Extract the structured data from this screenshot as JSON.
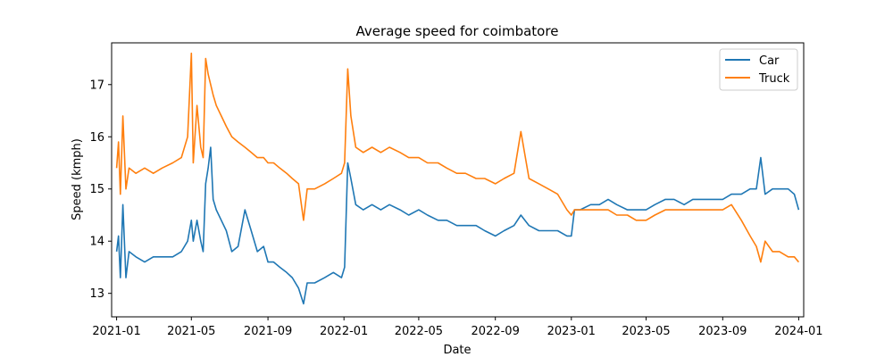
{
  "chart_data": {
    "type": "line",
    "title": "Average speed for coimbatore",
    "xlabel": "Date",
    "ylabel": "Speed (kmph)",
    "x_range": [
      "2020-12-24",
      "2024-01-09"
    ],
    "ylim": [
      12.55,
      17.8
    ],
    "x_ticks": [
      {
        "label": "2021-01",
        "date": "2021-01-01"
      },
      {
        "label": "2021-05",
        "date": "2021-05-01"
      },
      {
        "label": "2021-09",
        "date": "2021-09-01"
      },
      {
        "label": "2022-01",
        "date": "2022-01-01"
      },
      {
        "label": "2022-05",
        "date": "2022-05-01"
      },
      {
        "label": "2022-09",
        "date": "2022-09-01"
      },
      {
        "label": "2023-01",
        "date": "2023-01-01"
      },
      {
        "label": "2023-05",
        "date": "2023-05-01"
      },
      {
        "label": "2023-09",
        "date": "2023-09-01"
      },
      {
        "label": "2024-01",
        "date": "2024-01-01"
      }
    ],
    "y_ticks": [
      13,
      14,
      15,
      16,
      17
    ],
    "grid": false,
    "legend": "upper right",
    "series": [
      {
        "name": "Car",
        "color": "#1f77b4",
        "points": [
          [
            "2021-01-01",
            13.8
          ],
          [
            "2021-01-04",
            14.1
          ],
          [
            "2021-01-07",
            13.3
          ],
          [
            "2021-01-11",
            14.7
          ],
          [
            "2021-01-16",
            13.3
          ],
          [
            "2021-01-21",
            13.8
          ],
          [
            "2021-02-01",
            13.7
          ],
          [
            "2021-02-15",
            13.6
          ],
          [
            "2021-03-01",
            13.7
          ],
          [
            "2021-03-15",
            13.7
          ],
          [
            "2021-04-01",
            13.7
          ],
          [
            "2021-04-15",
            13.8
          ],
          [
            "2021-04-25",
            14.0
          ],
          [
            "2021-05-01",
            14.4
          ],
          [
            "2021-05-04",
            14.0
          ],
          [
            "2021-05-10",
            14.4
          ],
          [
            "2021-05-16",
            14.0
          ],
          [
            "2021-05-20",
            13.8
          ],
          [
            "2021-05-24",
            15.1
          ],
          [
            "2021-05-28",
            15.4
          ],
          [
            "2021-06-01",
            15.8
          ],
          [
            "2021-06-05",
            14.8
          ],
          [
            "2021-06-10",
            14.6
          ],
          [
            "2021-06-18",
            14.4
          ],
          [
            "2021-06-26",
            14.2
          ],
          [
            "2021-07-05",
            13.8
          ],
          [
            "2021-07-15",
            13.9
          ],
          [
            "2021-07-26",
            14.6
          ],
          [
            "2021-08-05",
            14.2
          ],
          [
            "2021-08-15",
            13.8
          ],
          [
            "2021-08-25",
            13.9
          ],
          [
            "2021-09-01",
            13.6
          ],
          [
            "2021-09-10",
            13.6
          ],
          [
            "2021-09-20",
            13.5
          ],
          [
            "2021-10-01",
            13.4
          ],
          [
            "2021-10-10",
            13.3
          ],
          [
            "2021-10-20",
            13.1
          ],
          [
            "2021-10-28",
            12.8
          ],
          [
            "2021-11-03",
            13.2
          ],
          [
            "2021-11-15",
            13.2
          ],
          [
            "2021-12-01",
            13.3
          ],
          [
            "2021-12-15",
            13.4
          ],
          [
            "2021-12-28",
            13.3
          ],
          [
            "2022-01-02",
            13.5
          ],
          [
            "2022-01-07",
            15.5
          ],
          [
            "2022-01-12",
            15.2
          ],
          [
            "2022-01-20",
            14.7
          ],
          [
            "2022-02-01",
            14.6
          ],
          [
            "2022-02-15",
            14.7
          ],
          [
            "2022-03-01",
            14.6
          ],
          [
            "2022-03-15",
            14.7
          ],
          [
            "2022-04-01",
            14.6
          ],
          [
            "2022-04-15",
            14.5
          ],
          [
            "2022-05-01",
            14.6
          ],
          [
            "2022-05-15",
            14.5
          ],
          [
            "2022-06-01",
            14.4
          ],
          [
            "2022-06-15",
            14.4
          ],
          [
            "2022-07-01",
            14.3
          ],
          [
            "2022-07-15",
            14.3
          ],
          [
            "2022-08-01",
            14.3
          ],
          [
            "2022-08-15",
            14.2
          ],
          [
            "2022-09-01",
            14.1
          ],
          [
            "2022-09-15",
            14.2
          ],
          [
            "2022-10-01",
            14.3
          ],
          [
            "2022-10-12",
            14.5
          ],
          [
            "2022-10-25",
            14.3
          ],
          [
            "2022-11-10",
            14.2
          ],
          [
            "2022-11-25",
            14.2
          ],
          [
            "2022-12-10",
            14.2
          ],
          [
            "2022-12-25",
            14.1
          ],
          [
            "2023-01-01",
            14.1
          ],
          [
            "2023-01-06",
            14.6
          ],
          [
            "2023-01-15",
            14.6
          ],
          [
            "2023-02-01",
            14.7
          ],
          [
            "2023-02-15",
            14.7
          ],
          [
            "2023-03-01",
            14.8
          ],
          [
            "2023-03-15",
            14.7
          ],
          [
            "2023-04-01",
            14.6
          ],
          [
            "2023-04-15",
            14.6
          ],
          [
            "2023-05-01",
            14.6
          ],
          [
            "2023-05-15",
            14.7
          ],
          [
            "2023-06-01",
            14.8
          ],
          [
            "2023-06-15",
            14.8
          ],
          [
            "2023-07-01",
            14.7
          ],
          [
            "2023-07-15",
            14.8
          ],
          [
            "2023-08-01",
            14.8
          ],
          [
            "2023-08-15",
            14.8
          ],
          [
            "2023-09-01",
            14.8
          ],
          [
            "2023-09-15",
            14.9
          ],
          [
            "2023-10-01",
            14.9
          ],
          [
            "2023-10-15",
            15.0
          ],
          [
            "2023-10-25",
            15.0
          ],
          [
            "2023-11-01",
            15.6
          ],
          [
            "2023-11-08",
            14.9
          ],
          [
            "2023-11-20",
            15.0
          ],
          [
            "2023-12-01",
            15.0
          ],
          [
            "2023-12-15",
            15.0
          ],
          [
            "2023-12-25",
            14.9
          ],
          [
            "2024-01-01",
            14.6
          ]
        ]
      },
      {
        "name": "Truck",
        "color": "#ff7f0e",
        "points": [
          [
            "2021-01-01",
            15.4
          ],
          [
            "2021-01-04",
            15.9
          ],
          [
            "2021-01-07",
            14.9
          ],
          [
            "2021-01-11",
            16.4
          ],
          [
            "2021-01-16",
            15.0
          ],
          [
            "2021-01-21",
            15.4
          ],
          [
            "2021-02-01",
            15.3
          ],
          [
            "2021-02-15",
            15.4
          ],
          [
            "2021-03-01",
            15.3
          ],
          [
            "2021-03-15",
            15.4
          ],
          [
            "2021-04-01",
            15.5
          ],
          [
            "2021-04-15",
            15.6
          ],
          [
            "2021-04-25",
            16.0
          ],
          [
            "2021-05-01",
            17.6
          ],
          [
            "2021-05-04",
            15.5
          ],
          [
            "2021-05-10",
            16.6
          ],
          [
            "2021-05-16",
            15.8
          ],
          [
            "2021-05-20",
            15.6
          ],
          [
            "2021-05-24",
            17.5
          ],
          [
            "2021-05-28",
            17.2
          ],
          [
            "2021-06-01",
            17.0
          ],
          [
            "2021-06-05",
            16.8
          ],
          [
            "2021-06-10",
            16.6
          ],
          [
            "2021-06-18",
            16.4
          ],
          [
            "2021-06-26",
            16.2
          ],
          [
            "2021-07-05",
            16.0
          ],
          [
            "2021-07-15",
            15.9
          ],
          [
            "2021-07-26",
            15.8
          ],
          [
            "2021-08-05",
            15.7
          ],
          [
            "2021-08-15",
            15.6
          ],
          [
            "2021-08-25",
            15.6
          ],
          [
            "2021-09-01",
            15.5
          ],
          [
            "2021-09-10",
            15.5
          ],
          [
            "2021-09-20",
            15.4
          ],
          [
            "2021-10-01",
            15.3
          ],
          [
            "2021-10-10",
            15.2
          ],
          [
            "2021-10-20",
            15.1
          ],
          [
            "2021-10-28",
            14.4
          ],
          [
            "2021-11-03",
            15.0
          ],
          [
            "2021-11-15",
            15.0
          ],
          [
            "2021-12-01",
            15.1
          ],
          [
            "2021-12-15",
            15.2
          ],
          [
            "2021-12-28",
            15.3
          ],
          [
            "2022-01-02",
            15.5
          ],
          [
            "2022-01-07",
            17.3
          ],
          [
            "2022-01-12",
            16.4
          ],
          [
            "2022-01-20",
            15.8
          ],
          [
            "2022-02-01",
            15.7
          ],
          [
            "2022-02-15",
            15.8
          ],
          [
            "2022-03-01",
            15.7
          ],
          [
            "2022-03-15",
            15.8
          ],
          [
            "2022-04-01",
            15.7
          ],
          [
            "2022-04-15",
            15.6
          ],
          [
            "2022-05-01",
            15.6
          ],
          [
            "2022-05-15",
            15.5
          ],
          [
            "2022-06-01",
            15.5
          ],
          [
            "2022-06-15",
            15.4
          ],
          [
            "2022-07-01",
            15.3
          ],
          [
            "2022-07-15",
            15.3
          ],
          [
            "2022-08-01",
            15.2
          ],
          [
            "2022-08-15",
            15.2
          ],
          [
            "2022-09-01",
            15.1
          ],
          [
            "2022-09-15",
            15.2
          ],
          [
            "2022-10-01",
            15.3
          ],
          [
            "2022-10-12",
            16.1
          ],
          [
            "2022-10-25",
            15.2
          ],
          [
            "2022-11-10",
            15.1
          ],
          [
            "2022-11-25",
            15.0
          ],
          [
            "2022-12-10",
            14.9
          ],
          [
            "2022-12-25",
            14.6
          ],
          [
            "2023-01-01",
            14.5
          ],
          [
            "2023-01-06",
            14.6
          ],
          [
            "2023-01-15",
            14.6
          ],
          [
            "2023-02-01",
            14.6
          ],
          [
            "2023-02-15",
            14.6
          ],
          [
            "2023-03-01",
            14.6
          ],
          [
            "2023-03-15",
            14.5
          ],
          [
            "2023-04-01",
            14.5
          ],
          [
            "2023-04-15",
            14.4
          ],
          [
            "2023-05-01",
            14.4
          ],
          [
            "2023-05-15",
            14.5
          ],
          [
            "2023-06-01",
            14.6
          ],
          [
            "2023-06-15",
            14.6
          ],
          [
            "2023-07-01",
            14.6
          ],
          [
            "2023-07-15",
            14.6
          ],
          [
            "2023-08-01",
            14.6
          ],
          [
            "2023-08-15",
            14.6
          ],
          [
            "2023-09-01",
            14.6
          ],
          [
            "2023-09-15",
            14.7
          ],
          [
            "2023-10-01",
            14.4
          ],
          [
            "2023-10-15",
            14.1
          ],
          [
            "2023-10-25",
            13.9
          ],
          [
            "2023-11-01",
            13.6
          ],
          [
            "2023-11-08",
            14.0
          ],
          [
            "2023-11-20",
            13.8
          ],
          [
            "2023-12-01",
            13.8
          ],
          [
            "2023-12-15",
            13.7
          ],
          [
            "2023-12-25",
            13.7
          ],
          [
            "2024-01-01",
            13.6
          ]
        ]
      }
    ]
  }
}
